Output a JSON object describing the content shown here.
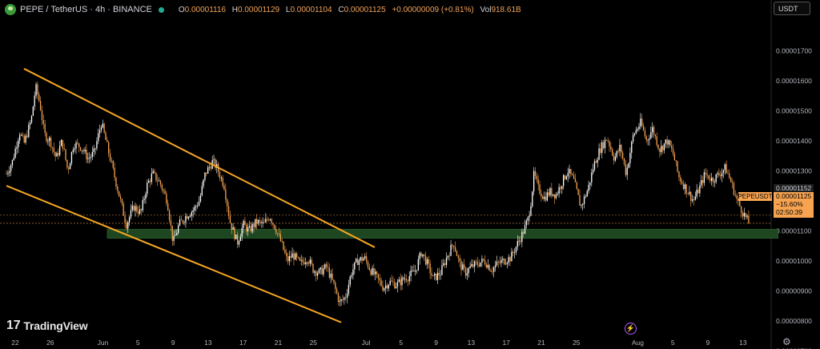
{
  "header": {
    "symbol": "PEPE / TetherUS · 4h · BINANCE",
    "open_label": "O",
    "open": "0.00001116",
    "high_label": "H",
    "high": "0.00001129",
    "low_label": "L",
    "low": "0.00001104",
    "close_label": "C",
    "close": "0.00001125",
    "change": "+0.00000009 (+0.81%)",
    "vol_label": "Vol",
    "vol": "918.61B"
  },
  "unit_button": "USDT",
  "logo_text": "TradingView",
  "price_tags": {
    "symbol": "PEPEUSDT",
    "ref_price": "0.00001152",
    "last_price": "0.00001125",
    "change_pct": "−15.60%",
    "countdown": "02:50:39"
  },
  "colors": {
    "background": "#000000",
    "candle": "#f7a350",
    "trendline": "#f5a623",
    "zone": "#1e4620",
    "tag": "#f7a350"
  },
  "chart_data": {
    "type": "candlestick",
    "ylim": [
      6.8e-06,
      1.74e-05
    ],
    "y_ticks": [
      "0.00000700",
      "0.00000800",
      "0.00000900",
      "0.00001000",
      "0.00001100",
      "0.00001200",
      "0.00001300",
      "0.00001400",
      "0.00001500",
      "0.00001600",
      "0.00001700"
    ],
    "x_ticks": [
      "22",
      "26",
      "Jun",
      "5",
      "9",
      "13",
      "17",
      "21",
      "25",
      "Jul",
      "5",
      "9",
      "13",
      "17",
      "21",
      "25",
      "Aug",
      "5",
      "9",
      "13"
    ],
    "x_tick_dates": [
      "2024-05-22",
      "2024-05-26",
      "2024-06-01",
      "2024-06-05",
      "2024-06-09",
      "2024-06-13",
      "2024-06-17",
      "2024-06-21",
      "2024-06-25",
      "2024-07-01",
      "2024-07-05",
      "2024-07-09",
      "2024-07-13",
      "2024-07-17",
      "2024-07-21",
      "2024-07-25",
      "2024-08-01",
      "2024-08-05",
      "2024-08-09",
      "2024-08-13"
    ],
    "price_path": [
      [
        "2024-05-21T00:00",
        1.29e-05
      ],
      [
        "2024-05-21T16:00",
        1.33e-05
      ],
      [
        "2024-05-22T12:00",
        1.43e-05
      ],
      [
        "2024-05-23T00:00",
        1.39e-05
      ],
      [
        "2024-05-23T20:00",
        1.47e-05
      ],
      [
        "2024-05-24T08:00",
        1.58e-05
      ],
      [
        "2024-05-24T20:00",
        1.52e-05
      ],
      [
        "2024-05-25T08:00",
        1.42e-05
      ],
      [
        "2024-05-26T00:00",
        1.4e-05
      ],
      [
        "2024-05-26T16:00",
        1.34e-05
      ],
      [
        "2024-05-27T08:00",
        1.4e-05
      ],
      [
        "2024-05-28T00:00",
        1.3e-05
      ],
      [
        "2024-05-28T16:00",
        1.39e-05
      ],
      [
        "2024-05-29T12:00",
        1.38e-05
      ],
      [
        "2024-05-30T08:00",
        1.34e-05
      ],
      [
        "2024-05-31T00:00",
        1.36e-05
      ],
      [
        "2024-05-31T20:00",
        1.46e-05
      ],
      [
        "2024-06-01T12:00",
        1.38e-05
      ],
      [
        "2024-06-02T08:00",
        1.28e-05
      ],
      [
        "2024-06-03T00:00",
        1.2e-05
      ],
      [
        "2024-06-03T16:00",
        1.12e-05
      ],
      [
        "2024-06-04T12:00",
        1.18e-05
      ],
      [
        "2024-06-05T08:00",
        1.16e-05
      ],
      [
        "2024-06-06T00:00",
        1.25e-05
      ],
      [
        "2024-06-06T16:00",
        1.29e-05
      ],
      [
        "2024-06-07T12:00",
        1.26e-05
      ],
      [
        "2024-06-08T08:00",
        1.2e-05
      ],
      [
        "2024-06-09T00:00",
        1.06e-05
      ],
      [
        "2024-06-09T16:00",
        1.12e-05
      ],
      [
        "2024-06-10T12:00",
        1.15e-05
      ],
      [
        "2024-06-11T08:00",
        1.17e-05
      ],
      [
        "2024-06-12T00:00",
        1.2e-05
      ],
      [
        "2024-06-12T16:00",
        1.29e-05
      ],
      [
        "2024-06-13T12:00",
        1.33e-05
      ],
      [
        "2024-06-14T00:00",
        1.31e-05
      ],
      [
        "2024-06-14T20:00",
        1.25e-05
      ],
      [
        "2024-06-15T12:00",
        1.13e-05
      ],
      [
        "2024-06-16T08:00",
        1.06e-05
      ],
      [
        "2024-06-17T00:00",
        1.12e-05
      ],
      [
        "2024-06-17T16:00",
        1.1e-05
      ],
      [
        "2024-06-18T12:00",
        1.13e-05
      ],
      [
        "2024-06-19T08:00",
        1.12e-05
      ],
      [
        "2024-06-20T00:00",
        1.15e-05
      ],
      [
        "2024-06-20T16:00",
        1.11e-05
      ],
      [
        "2024-06-21T08:00",
        1.06e-05
      ],
      [
        "2024-06-22T00:00",
        1e-05
      ],
      [
        "2024-06-22T16:00",
        1.02e-05
      ],
      [
        "2024-06-23T12:00",
        9.9e-06
      ],
      [
        "2024-06-24T08:00",
        1.01e-05
      ],
      [
        "2024-06-25T00:00",
        9.7e-06
      ],
      [
        "2024-06-25T16:00",
        9.6e-06
      ],
      [
        "2024-06-26T12:00",
        9.8e-06
      ],
      [
        "2024-06-27T08:00",
        9.2e-06
      ],
      [
        "2024-06-28T00:00",
        8.6e-06
      ],
      [
        "2024-06-28T16:00",
        8.8e-06
      ],
      [
        "2024-06-29T08:00",
        9.6e-06
      ],
      [
        "2024-06-30T00:00",
        1e-05
      ],
      [
        "2024-06-30T20:00",
        1.01e-05
      ],
      [
        "2024-07-01T12:00",
        9.7e-06
      ],
      [
        "2024-07-02T08:00",
        9.4e-06
      ],
      [
        "2024-07-03T00:00",
        9.1e-06
      ],
      [
        "2024-07-03T16:00",
        9.3e-06
      ],
      [
        "2024-07-04T12:00",
        9.2e-06
      ],
      [
        "2024-07-05T08:00",
        9.4e-06
      ],
      [
        "2024-07-06T00:00",
        9.5e-06
      ],
      [
        "2024-07-06T16:00",
        9.7e-06
      ],
      [
        "2024-07-07T08:00",
        1.03e-05
      ],
      [
        "2024-07-08T00:00",
        9.9e-06
      ],
      [
        "2024-07-08T16:00",
        9.4e-06
      ],
      [
        "2024-07-09T12:00",
        9.6e-06
      ],
      [
        "2024-07-10T08:00",
        1.02e-05
      ],
      [
        "2024-07-11T00:00",
        1.06e-05
      ],
      [
        "2024-07-11T16:00",
        9.9e-06
      ],
      [
        "2024-07-12T08:00",
        9.6e-06
      ],
      [
        "2024-07-13T00:00",
        9.8e-06
      ],
      [
        "2024-07-13T16:00",
        9.9e-06
      ],
      [
        "2024-07-14T12:00",
        1e-05
      ],
      [
        "2024-07-15T08:00",
        9.7e-06
      ],
      [
        "2024-07-16T00:00",
        9.9e-06
      ],
      [
        "2024-07-16T16:00",
        1e-05
      ],
      [
        "2024-07-17T12:00",
        1.01e-05
      ],
      [
        "2024-07-18T08:00",
        1.06e-05
      ],
      [
        "2024-07-19T00:00",
        1.1e-05
      ],
      [
        "2024-07-19T12:00",
        1.14e-05
      ],
      [
        "2024-07-19T20:00",
        1.2e-05
      ],
      [
        "2024-07-20T04:00",
        1.29e-05
      ],
      [
        "2024-07-20T16:00",
        1.24e-05
      ],
      [
        "2024-07-21T08:00",
        1.21e-05
      ],
      [
        "2024-07-22T00:00",
        1.23e-05
      ],
      [
        "2024-07-22T16:00",
        1.22e-05
      ],
      [
        "2024-07-23T08:00",
        1.26e-05
      ],
      [
        "2024-07-24T00:00",
        1.3e-05
      ],
      [
        "2024-07-24T16:00",
        1.27e-05
      ],
      [
        "2024-07-25T12:00",
        1.18e-05
      ],
      [
        "2024-07-26T08:00",
        1.24e-05
      ],
      [
        "2024-07-27T00:00",
        1.32e-05
      ],
      [
        "2024-07-27T16:00",
        1.37e-05
      ],
      [
        "2024-07-28T12:00",
        1.41e-05
      ],
      [
        "2024-07-29T08:00",
        1.34e-05
      ],
      [
        "2024-07-30T00:00",
        1.38e-05
      ],
      [
        "2024-07-30T16:00",
        1.29e-05
      ],
      [
        "2024-07-31T12:00",
        1.42e-05
      ],
      [
        "2024-08-01T08:00",
        1.46e-05
      ],
      [
        "2024-08-02T00:00",
        1.4e-05
      ],
      [
        "2024-08-02T16:00",
        1.44e-05
      ],
      [
        "2024-08-03T12:00",
        1.37e-05
      ],
      [
        "2024-08-04T08:00",
        1.4e-05
      ],
      [
        "2024-08-05T00:00",
        1.36e-05
      ],
      [
        "2024-08-05T16:00",
        1.28e-05
      ],
      [
        "2024-08-06T12:00",
        1.24e-05
      ],
      [
        "2024-08-07T08:00",
        1.2e-05
      ],
      [
        "2024-08-08T00:00",
        1.24e-05
      ],
      [
        "2024-08-08T16:00",
        1.29e-05
      ],
      [
        "2024-08-09T12:00",
        1.27e-05
      ],
      [
        "2024-08-10T08:00",
        1.29e-05
      ],
      [
        "2024-08-11T00:00",
        1.31e-05
      ],
      [
        "2024-08-11T16:00",
        1.26e-05
      ],
      [
        "2024-08-12T08:00",
        1.2e-05
      ],
      [
        "2024-08-13T00:00",
        1.16e-05
      ],
      [
        "2024-08-13T16:00",
        1.125e-05
      ]
    ],
    "channel_upper": [
      [
        "2024-05-23T00:00",
        1.64e-05
      ],
      [
        "2024-07-02T00:00",
        1.045e-05
      ]
    ],
    "channel_lower": [
      [
        "2024-05-21T00:00",
        1.25e-05
      ],
      [
        "2024-06-28T04:00",
        7.95e-06
      ]
    ],
    "support_zone": {
      "from": "2024-06-01T12:00",
      "to": "2024-08-17T00:00",
      "low": 1.075e-05,
      "high": 1.105e-05
    },
    "ref_line_price": 1.152e-05,
    "last_price": 1.125e-05
  }
}
